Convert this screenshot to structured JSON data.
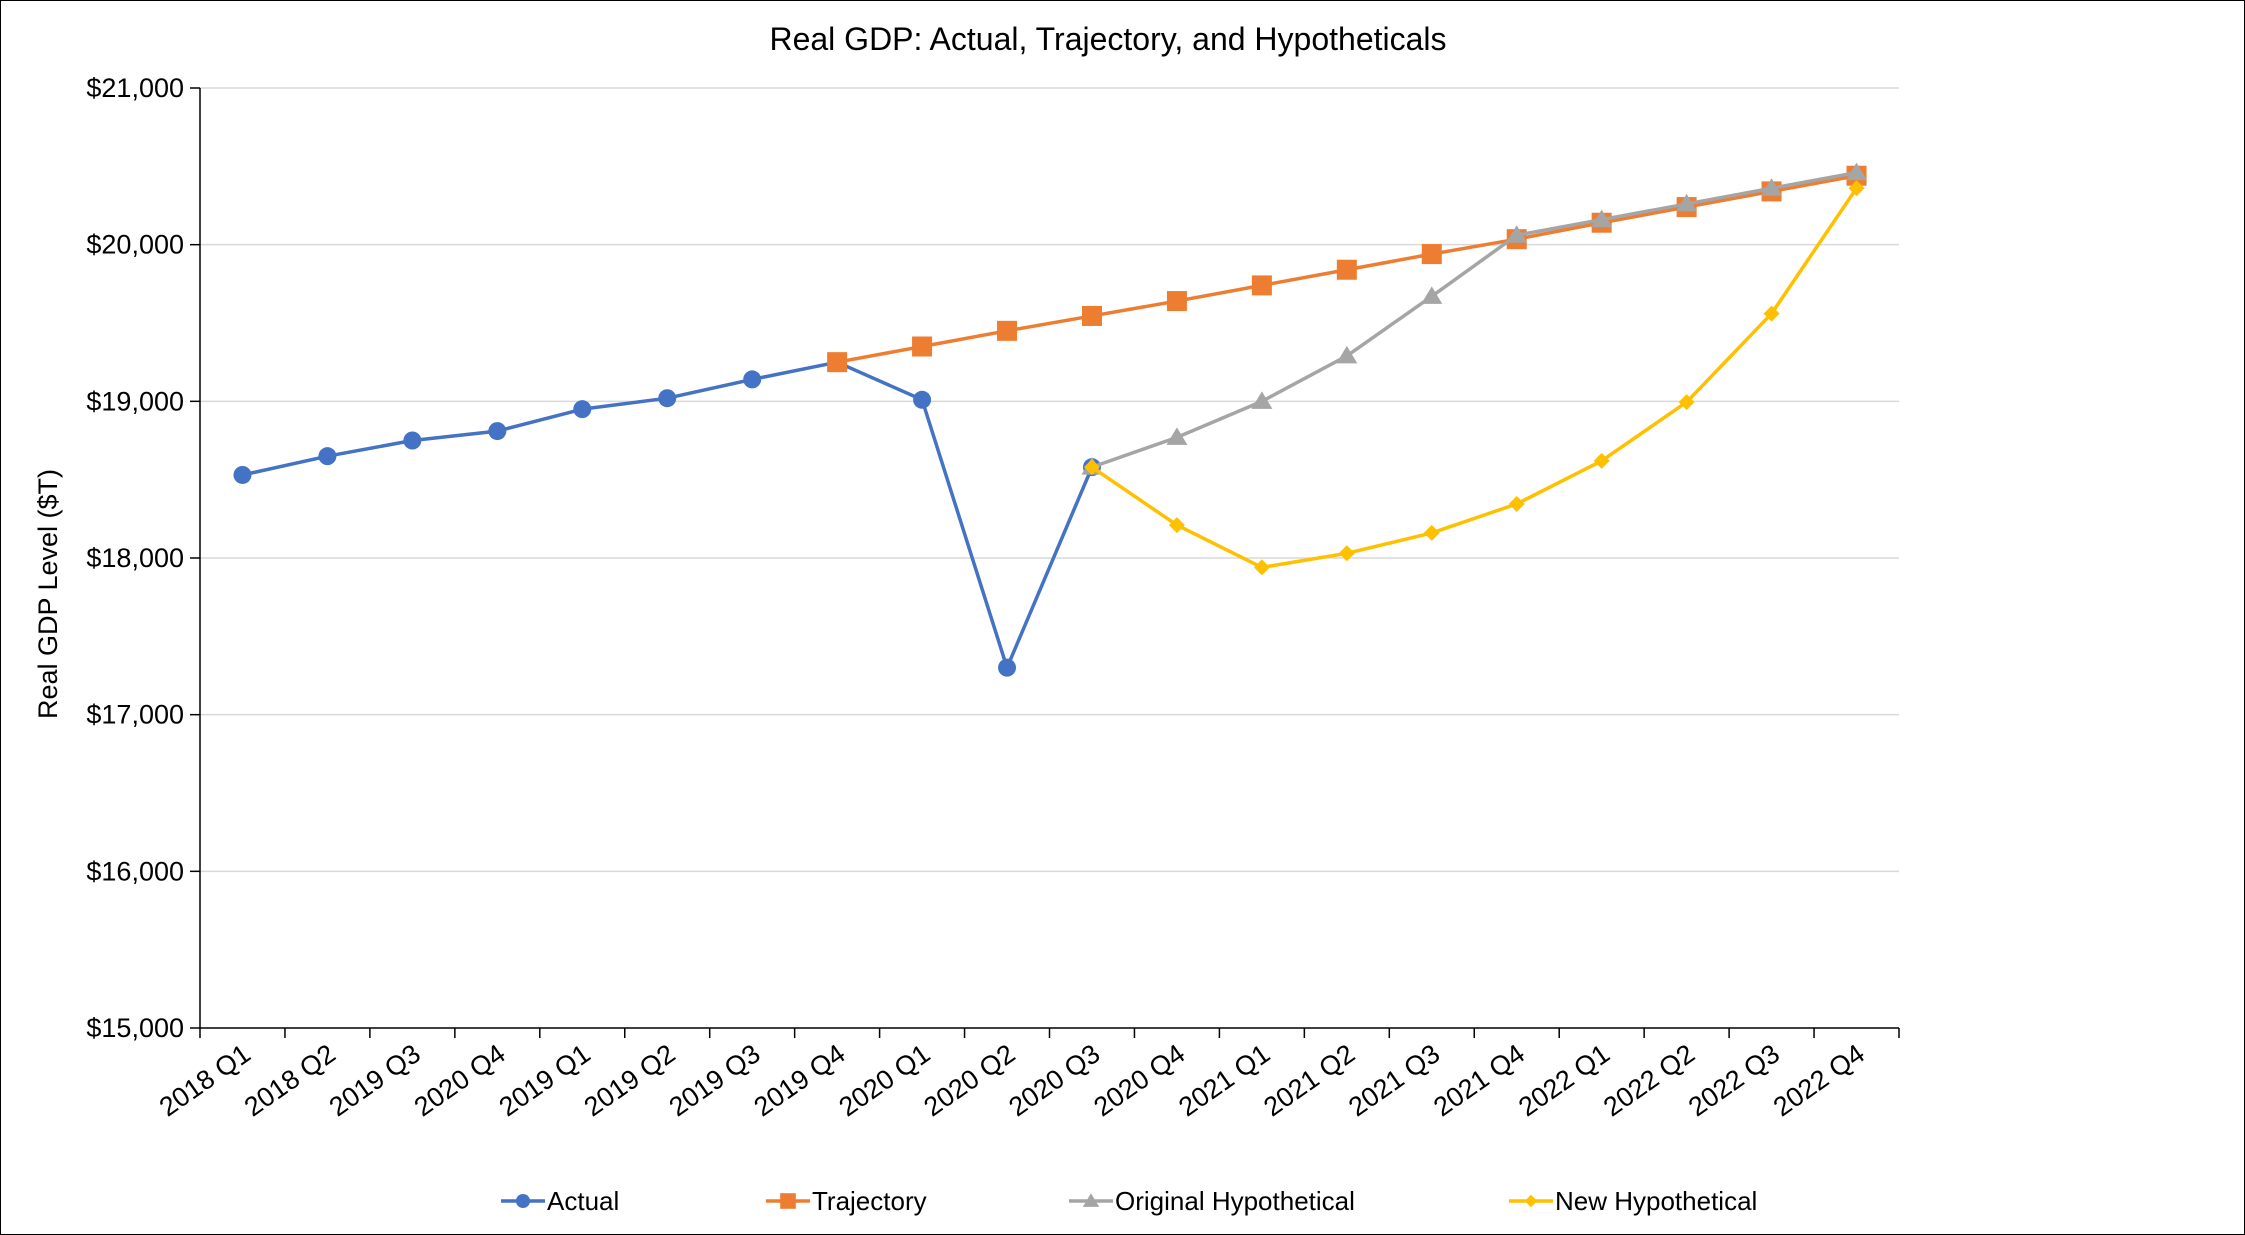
{
  "chart_data": {
    "type": "line",
    "title": "Real GDP: Actual, Trajectory,  and Hypotheticals",
    "xlabel": "",
    "ylabel": "Real GDP Level ($T)",
    "ylim": [
      15000,
      21000
    ],
    "yticks": [
      15000,
      16000,
      17000,
      18000,
      19000,
      20000,
      21000
    ],
    "ytick_labels": [
      "$15,000",
      "$16,000",
      "$17,000",
      "$18,000",
      "$19,000",
      "$20,000",
      "$21,000"
    ],
    "grid": true,
    "legend_position": "bottom",
    "categories": [
      "2018 Q1",
      "2018 Q2",
      "2019 Q3",
      "2020 Q4",
      "2019 Q1",
      "2019 Q2",
      "2019 Q3",
      "2019 Q4",
      "2020 Q1",
      "2020 Q2",
      "2020 Q3",
      "2020 Q4",
      "2021 Q1",
      "2021 Q2",
      "2021 Q3",
      "2021 Q4",
      "2022 Q1",
      "2022 Q2",
      "2022 Q3",
      "2022 Q4"
    ],
    "series": [
      {
        "name": "Actual",
        "color": "#4472C4",
        "marker": "circle",
        "values": [
          18530,
          18650,
          18750,
          18810,
          18950,
          19020,
          19140,
          19250,
          19010,
          17300,
          18580,
          null,
          null,
          null,
          null,
          null,
          null,
          null,
          null,
          null
        ]
      },
      {
        "name": "Trajectory",
        "color": "#ED7D31",
        "marker": "square",
        "values": [
          null,
          null,
          null,
          null,
          null,
          null,
          null,
          19250,
          19350,
          19450,
          19545,
          19640,
          19740,
          19840,
          19940,
          20035,
          20140,
          20240,
          20340,
          20440
        ]
      },
      {
        "name": "Original Hypothetical",
        "color": "#A5A5A5",
        "marker": "triangle",
        "values": [
          null,
          null,
          null,
          null,
          null,
          null,
          null,
          null,
          null,
          null,
          18580,
          18770,
          19000,
          19290,
          19670,
          20060,
          20160,
          20260,
          20360,
          20460
        ]
      },
      {
        "name": "New Hypothetical",
        "color": "#FFC000",
        "marker": "diamond",
        "values": [
          null,
          null,
          null,
          null,
          null,
          null,
          null,
          null,
          null,
          null,
          18580,
          18210,
          17940,
          18030,
          18160,
          18345,
          18620,
          18995,
          19560,
          20360
        ]
      }
    ]
  }
}
